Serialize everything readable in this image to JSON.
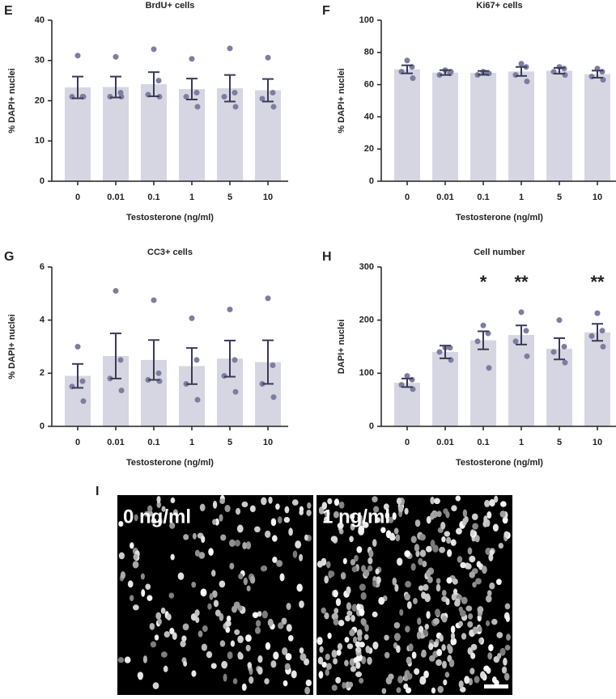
{
  "chart_data": [
    {
      "type": "bar",
      "panel": "E",
      "title": "BrdU+ cells",
      "y_label": "% DAPI+ nuclei",
      "x_label": "Testosterone (ng/ml)",
      "categories": [
        "0",
        "0.01",
        "0.1",
        "1",
        "5",
        "10"
      ],
      "values": [
        23.3,
        23.4,
        24.1,
        22.9,
        23.1,
        22.6
      ],
      "errors": [
        2.7,
        2.6,
        3.0,
        2.6,
        3.3,
        2.8
      ],
      "points": [
        [
          31.2,
          21,
          21,
          21
        ],
        [
          30.9,
          22,
          21,
          21
        ],
        [
          32.8,
          25,
          21.5,
          21
        ],
        [
          30.4,
          22,
          21,
          18.5
        ],
        [
          33,
          22,
          21,
          18.5
        ],
        [
          30.7,
          22,
          20.5,
          18.5
        ]
      ],
      "color": "#d6d6e2",
      "point_color": "#7d7da0",
      "error_color": "#3a3a58",
      "ylim": [
        0,
        40
      ],
      "yticks": [
        0,
        10,
        20,
        30,
        40
      ]
    },
    {
      "type": "bar",
      "panel": "F",
      "title": "Ki67+ cells",
      "y_label": "% DAPI+ nuclei",
      "x_label": "Testosterone (ng/ml)",
      "categories": [
        "0",
        "0.01",
        "0.1",
        "1",
        "5",
        "10"
      ],
      "values": [
        69.5,
        67.5,
        67.3,
        68.2,
        68.6,
        66.5
      ],
      "errors": [
        2.5,
        1.5,
        1.2,
        2.8,
        1.8,
        2.2
      ],
      "points": [
        [
          75,
          71,
          68,
          64
        ],
        [
          69,
          67,
          66,
          68
        ],
        [
          68,
          67,
          66,
          67
        ],
        [
          73,
          71,
          66,
          62
        ],
        [
          71,
          70,
          68,
          66
        ],
        [
          70,
          68,
          65,
          63
        ]
      ],
      "color": "#d6d6e2",
      "point_color": "#7d7da0",
      "error_color": "#3a3a58",
      "ylim": [
        0,
        100
      ],
      "yticks": [
        0,
        20,
        40,
        60,
        80,
        100
      ]
    },
    {
      "type": "bar",
      "panel": "G",
      "title": "CC3+ cells",
      "y_label": "% DAPI+ nuclei",
      "x_label": "Testosterone (ng/ml)",
      "categories": [
        "0",
        "0.01",
        "0.1",
        "1",
        "5",
        "10"
      ],
      "values": [
        1.9,
        2.65,
        2.5,
        2.27,
        2.55,
        2.42
      ],
      "errors": [
        0.45,
        0.85,
        0.75,
        0.68,
        0.68,
        0.82
      ],
      "points": [
        [
          3.0,
          1.7,
          1.5,
          0.95
        ],
        [
          5.1,
          2.5,
          1.8,
          1.35
        ],
        [
          4.75,
          2.0,
          1.75,
          1.7
        ],
        [
          4.07,
          2.5,
          1.6,
          1.0
        ],
        [
          4.4,
          2.5,
          1.9,
          1.3
        ],
        [
          4.82,
          2.3,
          1.6,
          1.1
        ]
      ],
      "color": "#d6d6e2",
      "point_color": "#7d7da0",
      "error_color": "#3a3a58",
      "ylim": [
        0,
        6
      ],
      "yticks": [
        0,
        2,
        4,
        6
      ]
    },
    {
      "type": "bar",
      "panel": "H",
      "title": "Cell number",
      "y_label": "DAPI+ nuclei",
      "x_label": "Testosterone (ng/ml)",
      "categories": [
        "0",
        "0.01",
        "0.1",
        "1",
        "5",
        "10"
      ],
      "values": [
        82,
        140,
        162,
        172,
        146,
        177
      ],
      "errors": [
        8,
        12,
        17,
        18,
        20,
        16
      ],
      "points": [
        [
          95,
          88,
          78,
          70
        ],
        [
          148,
          148,
          140,
          125
        ],
        [
          190,
          175,
          160,
          110
        ],
        [
          215,
          180,
          160,
          132
        ],
        [
          200,
          150,
          140,
          120
        ],
        [
          213,
          180,
          170,
          150
        ]
      ],
      "annotations": [
        null,
        null,
        "*",
        "**",
        null,
        "**"
      ],
      "color": "#d6d6e2",
      "point_color": "#7d7da0",
      "error_color": "#3a3a58",
      "ylim": [
        0,
        300
      ],
      "yticks": [
        0,
        100,
        200,
        300
      ]
    }
  ],
  "images": {
    "panel": "I",
    "labels": [
      "0 ng/ml",
      "1 ng/ml"
    ]
  }
}
